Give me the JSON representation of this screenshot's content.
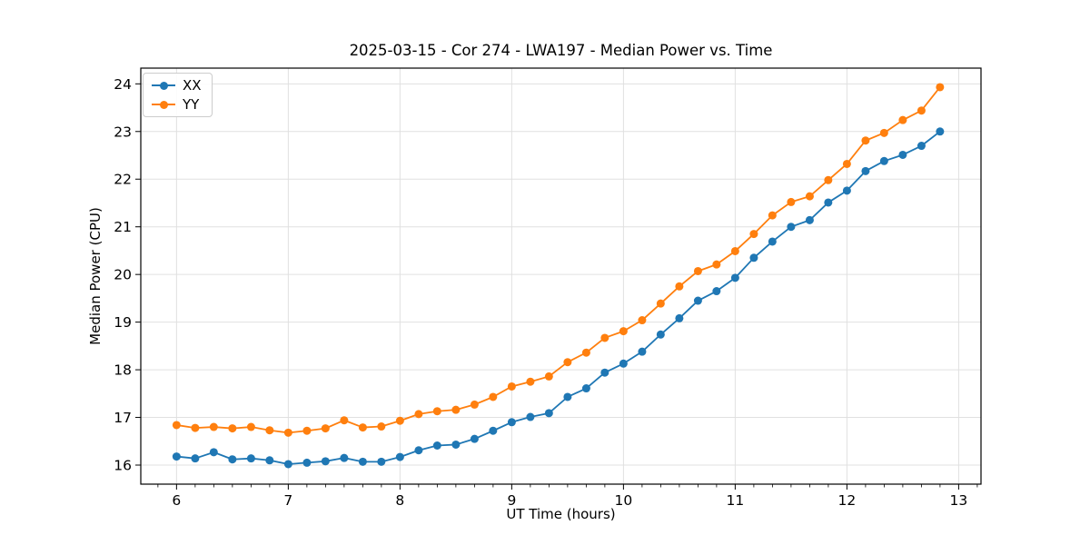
{
  "chart_data": {
    "type": "line",
    "title": "2025-03-15 - Cor 274 - LWA197 - Median Power vs. Time",
    "xlabel": "UT Time (hours)",
    "ylabel": "Median Power (CPU)",
    "xlim": [
      5.68,
      13.2
    ],
    "ylim": [
      15.6,
      24.33
    ],
    "xticks": [
      6,
      7,
      8,
      9,
      10,
      11,
      12,
      13
    ],
    "yticks": [
      16,
      17,
      18,
      19,
      20,
      21,
      22,
      23,
      24
    ],
    "minor_xtick_step_hours": 0.1667,
    "grid": true,
    "grid_color": "#e0e0e0",
    "legend_position": "upper left",
    "x": [
      6.0,
      6.167,
      6.333,
      6.5,
      6.667,
      6.833,
      7.0,
      7.167,
      7.333,
      7.5,
      7.667,
      7.833,
      8.0,
      8.167,
      8.333,
      8.5,
      8.667,
      8.833,
      9.0,
      9.167,
      9.333,
      9.5,
      9.667,
      9.833,
      10.0,
      10.167,
      10.333,
      10.5,
      10.667,
      10.833,
      11.0,
      11.167,
      11.333,
      11.5,
      11.667,
      11.833,
      12.0,
      12.167,
      12.333,
      12.5,
      12.667,
      12.833
    ],
    "series": [
      {
        "name": "XX",
        "color": "#1f77b4",
        "values": [
          16.18,
          16.14,
          16.27,
          16.12,
          16.14,
          16.1,
          16.02,
          16.05,
          16.08,
          16.15,
          16.07,
          16.07,
          16.17,
          16.31,
          16.41,
          16.43,
          16.55,
          16.72,
          16.9,
          17.01,
          17.09,
          17.43,
          17.61,
          17.94,
          18.13,
          18.38,
          18.74,
          19.08,
          19.45,
          19.65,
          19.93,
          20.35,
          20.69,
          21.0,
          21.14,
          21.51,
          21.76,
          22.17,
          22.38,
          22.51,
          22.7,
          23.0
        ]
      },
      {
        "name": "YY",
        "color": "#ff7f0e",
        "values": [
          16.84,
          16.78,
          16.8,
          16.77,
          16.8,
          16.73,
          16.68,
          16.72,
          16.77,
          16.94,
          16.79,
          16.81,
          16.93,
          17.07,
          17.13,
          17.16,
          17.27,
          17.43,
          17.65,
          17.75,
          17.86,
          18.16,
          18.36,
          18.67,
          18.81,
          19.04,
          19.39,
          19.75,
          20.07,
          20.21,
          20.49,
          20.85,
          21.24,
          21.52,
          21.64,
          21.98,
          22.32,
          22.81,
          22.97,
          23.24,
          23.44,
          23.93
        ]
      }
    ]
  }
}
